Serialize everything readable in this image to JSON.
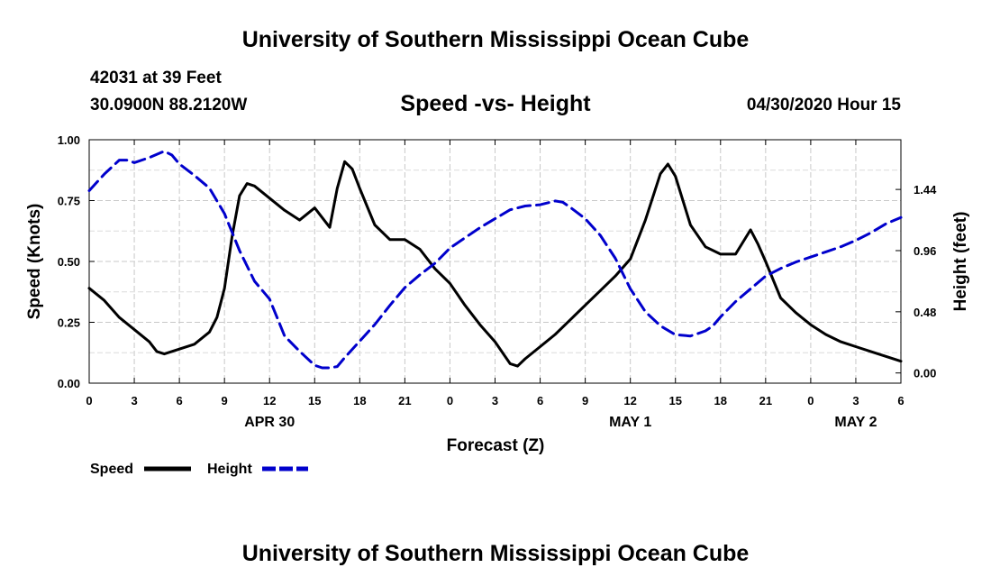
{
  "header": {
    "title": "University of Southern Mississippi Ocean Cube",
    "station": "42031 at 39 Feet",
    "coords": "30.0900N 88.2120W",
    "subtitle": "Speed -vs- Height",
    "datetime": "04/30/2020 Hour 15"
  },
  "footer": {
    "title": "University of Southern Mississippi Ocean Cube"
  },
  "chart_data": {
    "type": "line",
    "title": "Speed -vs- Height",
    "xlabel": "Forecast (Z)",
    "ylabel": "Speed (Knots)",
    "y2label": "Height (feet)",
    "x_range": [
      0,
      54
    ],
    "ylim": [
      0,
      1.0
    ],
    "y2lim": [
      -0.08,
      1.83
    ],
    "grid": true,
    "legend_position": "bottom-left",
    "x_ticks": [
      0,
      3,
      6,
      9,
      12,
      15,
      18,
      21,
      24,
      27,
      30,
      33,
      36,
      39,
      42,
      45,
      48,
      51,
      54
    ],
    "x_tick_labels": [
      "0",
      "3",
      "6",
      "9",
      "12",
      "15",
      "18",
      "21",
      "0",
      "3",
      "6",
      "9",
      "12",
      "15",
      "18",
      "21",
      "0",
      "3",
      "6"
    ],
    "y_ticks": [
      0,
      0.25,
      0.5,
      0.75,
      1.0
    ],
    "y_tick_labels": [
      "0.00",
      "0.25",
      "0.50",
      "0.75",
      "1.00"
    ],
    "y2_ticks": [
      0,
      0.48,
      0.96,
      1.44
    ],
    "y2_tick_labels": [
      "0.00",
      "0.48",
      "0.96",
      "1.44"
    ],
    "day_labels": [
      {
        "x": 12,
        "label": "APR 30"
      },
      {
        "x": 36,
        "label": "MAY 1"
      },
      {
        "x": 51,
        "label": "MAY 2"
      }
    ],
    "series": [
      {
        "name": "Speed",
        "axis": "left",
        "color": "#000000",
        "style": "solid",
        "x": [
          0,
          1,
          2,
          3,
          4,
          4.5,
          5,
          6,
          7,
          8,
          8.5,
          9,
          9.5,
          10,
          10.5,
          11,
          12,
          13,
          14,
          15,
          16,
          16.5,
          17,
          17.5,
          18,
          19,
          20,
          21,
          22,
          23,
          24,
          25,
          26,
          27,
          28,
          28.5,
          29,
          30,
          31,
          32,
          33,
          34,
          35,
          36,
          37,
          38,
          38.5,
          39,
          40,
          41,
          42,
          43,
          44,
          44.5,
          45,
          46,
          47,
          48,
          49,
          50,
          51,
          52,
          53,
          54
        ],
        "values": [
          0.39,
          0.34,
          0.27,
          0.22,
          0.17,
          0.13,
          0.12,
          0.14,
          0.16,
          0.21,
          0.27,
          0.39,
          0.6,
          0.77,
          0.82,
          0.81,
          0.76,
          0.71,
          0.67,
          0.72,
          0.64,
          0.8,
          0.91,
          0.88,
          0.8,
          0.65,
          0.59,
          0.59,
          0.55,
          0.47,
          0.41,
          0.32,
          0.24,
          0.17,
          0.08,
          0.07,
          0.1,
          0.15,
          0.2,
          0.26,
          0.32,
          0.38,
          0.44,
          0.51,
          0.67,
          0.86,
          0.9,
          0.85,
          0.65,
          0.56,
          0.53,
          0.53,
          0.63,
          0.57,
          0.5,
          0.35,
          0.29,
          0.24,
          0.2,
          0.17,
          0.15,
          0.13,
          0.11,
          0.09
        ]
      },
      {
        "name": "Height",
        "axis": "right",
        "color": "#0000cc",
        "style": "dashed",
        "x": [
          0,
          1,
          2,
          2.5,
          3,
          4,
          5,
          5.5,
          6,
          7,
          8,
          9,
          10,
          11,
          12,
          13,
          14,
          15,
          15.5,
          16,
          16.5,
          17,
          18,
          19,
          20,
          21,
          22,
          23,
          24,
          25,
          26,
          27,
          28,
          29,
          30,
          31,
          31.5,
          32,
          33,
          34,
          35,
          36,
          37,
          38,
          39,
          40,
          40.5,
          41,
          41.5,
          42,
          43,
          44,
          45,
          46,
          47,
          48,
          49,
          50,
          51,
          52,
          53,
          54
        ],
        "values": [
          1.43,
          1.56,
          1.67,
          1.67,
          1.65,
          1.69,
          1.74,
          1.71,
          1.64,
          1.55,
          1.45,
          1.25,
          0.96,
          0.72,
          0.58,
          0.29,
          0.17,
          0.06,
          0.04,
          0.04,
          0.05,
          0.12,
          0.25,
          0.38,
          0.53,
          0.67,
          0.77,
          0.86,
          0.98,
          1.06,
          1.14,
          1.21,
          1.28,
          1.31,
          1.32,
          1.35,
          1.34,
          1.3,
          1.21,
          1.08,
          0.9,
          0.66,
          0.48,
          0.37,
          0.3,
          0.29,
          0.31,
          0.33,
          0.37,
          0.44,
          0.56,
          0.66,
          0.76,
          0.82,
          0.87,
          0.91,
          0.95,
          0.99,
          1.04,
          1.1,
          1.17,
          1.22
        ]
      }
    ]
  }
}
